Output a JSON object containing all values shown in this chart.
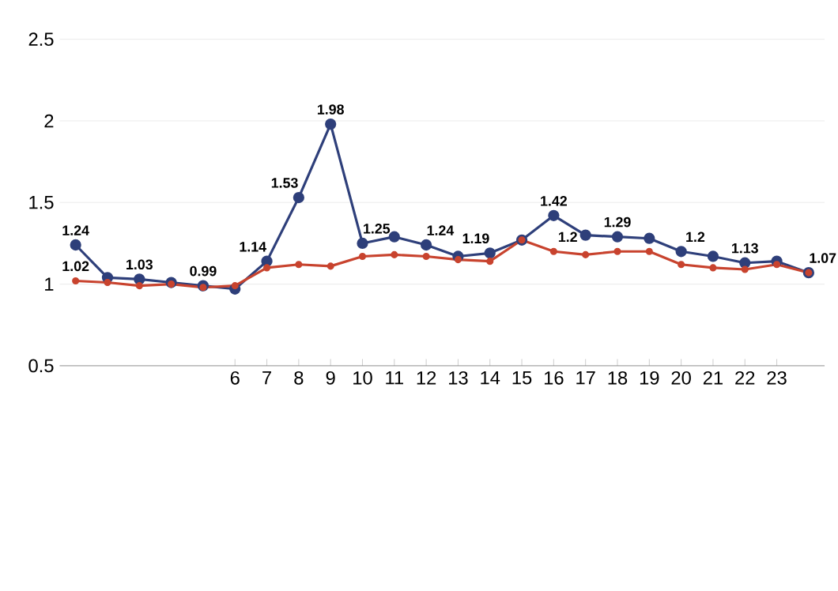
{
  "chart_data": {
    "type": "line",
    "categories": [
      null,
      null,
      null,
      null,
      null,
      "6",
      "7",
      "8",
      "9",
      "10",
      "11",
      "12",
      "13",
      "14",
      "15",
      "16",
      "17",
      "18",
      "19",
      "20",
      "21",
      "22",
      "23",
      null
    ],
    "series": [
      {
        "color": "#2e3f7a",
        "values": [
          1.24,
          1.04,
          1.03,
          1.01,
          0.99,
          0.97,
          1.14,
          1.53,
          1.98,
          1.25,
          1.29,
          1.24,
          1.17,
          1.19,
          1.27,
          1.42,
          1.3,
          1.29,
          1.28,
          1.2,
          1.17,
          1.13,
          1.14,
          1.07
        ],
        "value_labels": [
          "1.24",
          null,
          "1.03",
          null,
          "0.99",
          null,
          "1.14",
          "1.53",
          "1.98",
          "1.25",
          null,
          "1.24",
          null,
          "1.19",
          null,
          "1.42",
          null,
          "1.29",
          null,
          "1.2",
          null,
          "1.13",
          null,
          "1.07"
        ]
      },
      {
        "color": "#c8432e",
        "values": [
          1.02,
          1.01,
          0.99,
          1.0,
          0.98,
          0.99,
          1.1,
          1.12,
          1.11,
          1.17,
          1.18,
          1.17,
          1.15,
          1.14,
          1.27,
          1.2,
          1.18,
          1.2,
          1.2,
          1.12,
          1.1,
          1.09,
          1.12,
          1.07
        ],
        "value_labels": [
          "1.02",
          null,
          null,
          null,
          null,
          null,
          null,
          null,
          null,
          null,
          null,
          null,
          null,
          null,
          null,
          "1.2",
          null,
          null,
          null,
          null,
          null,
          null,
          null,
          null
        ]
      }
    ],
    "ylim": [
      0.5,
      2.5
    ],
    "yticks": [
      0.5,
      1,
      1.5,
      2,
      2.5
    ],
    "grid": "y",
    "marker": "circle",
    "line_style": "solid"
  }
}
